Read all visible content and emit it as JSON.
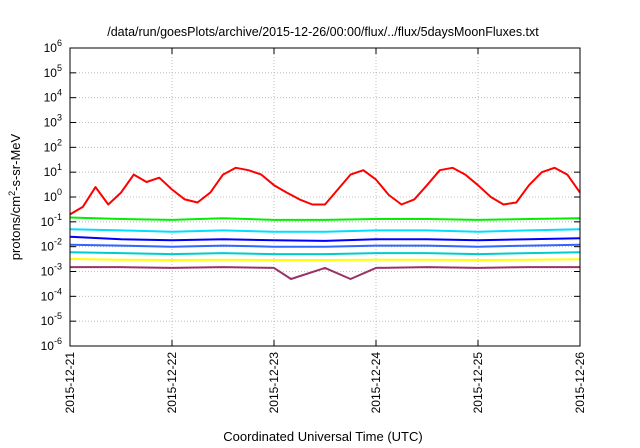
{
  "chart_data": {
    "type": "line",
    "title": "/data/run/goesPlots/archive/2015-12-26/00:00/flux/../flux/5daysMoonFluxes.txt",
    "xlabel": "Coordinated Universal Time (UTC)",
    "ylabel": {
      "pre": "protons/cm",
      "sup": "2",
      "post": "-s-sr-MeV"
    },
    "y_scale": "log",
    "ylim_exponents": [
      -6,
      6
    ],
    "y_ticks": [
      {
        "base": "10",
        "exp": "6"
      },
      {
        "base": "10",
        "exp": "5"
      },
      {
        "base": "10",
        "exp": "4"
      },
      {
        "base": "10",
        "exp": "3"
      },
      {
        "base": "10",
        "exp": "2"
      },
      {
        "base": "10",
        "exp": "1"
      },
      {
        "base": "10",
        "exp": "0"
      },
      {
        "base": "10",
        "exp": "-1"
      },
      {
        "base": "10",
        "exp": "-2"
      },
      {
        "base": "10",
        "exp": "-3"
      },
      {
        "base": "10",
        "exp": "-4"
      },
      {
        "base": "10",
        "exp": "-5"
      },
      {
        "base": "10",
        "exp": "-6"
      }
    ],
    "x_range": [
      "2015-12-21T00:00",
      "2015-12-26T00:00"
    ],
    "x_ticks": [
      "2015-12-21",
      "2015-12-22",
      "2015-12-23",
      "2015-12-24",
      "2015-12-25",
      "2015-12-26"
    ],
    "grid": true,
    "legend": "none",
    "series": [
      {
        "color": "#ff0000",
        "x": [
          "2015-12-21T00:00",
          "2015-12-21T03:00",
          "2015-12-21T06:00",
          "2015-12-21T09:00",
          "2015-12-21T12:00",
          "2015-12-21T15:00",
          "2015-12-21T18:00",
          "2015-12-21T21:00",
          "2015-12-22T00:00",
          "2015-12-22T03:00",
          "2015-12-22T06:00",
          "2015-12-22T09:00",
          "2015-12-22T12:00",
          "2015-12-22T15:00",
          "2015-12-22T18:00",
          "2015-12-22T21:00",
          "2015-12-23T00:00",
          "2015-12-23T03:00",
          "2015-12-23T06:00",
          "2015-12-23T09:00",
          "2015-12-23T12:00",
          "2015-12-23T15:00",
          "2015-12-23T18:00",
          "2015-12-23T21:00",
          "2015-12-24T00:00",
          "2015-12-24T03:00",
          "2015-12-24T06:00",
          "2015-12-24T09:00",
          "2015-12-24T12:00",
          "2015-12-24T15:00",
          "2015-12-24T18:00",
          "2015-12-24T21:00",
          "2015-12-25T00:00",
          "2015-12-25T03:00",
          "2015-12-25T06:00",
          "2015-12-25T09:00",
          "2015-12-25T12:00",
          "2015-12-25T15:00",
          "2015-12-25T18:00",
          "2015-12-25T21:00",
          "2015-12-26T00:00"
        ],
        "y": [
          0.2,
          0.4,
          2.5,
          0.5,
          1.5,
          8,
          4,
          6,
          2,
          0.8,
          0.6,
          1.5,
          8,
          15,
          12,
          8,
          3,
          1.5,
          0.8,
          0.5,
          0.5,
          2,
          8,
          12,
          5,
          1.2,
          0.5,
          0.8,
          3,
          12,
          15,
          8,
          3,
          1,
          0.5,
          0.6,
          3,
          10,
          15,
          8,
          1.5
        ]
      },
      {
        "color": "#00ee00",
        "x": [
          "2015-12-21T00:00",
          "2015-12-21T12:00",
          "2015-12-22T00:00",
          "2015-12-22T12:00",
          "2015-12-23T00:00",
          "2015-12-23T12:00",
          "2015-12-24T00:00",
          "2015-12-24T12:00",
          "2015-12-25T00:00",
          "2015-12-25T12:00",
          "2015-12-26T00:00"
        ],
        "y": [
          0.15,
          0.13,
          0.12,
          0.14,
          0.12,
          0.12,
          0.13,
          0.13,
          0.12,
          0.13,
          0.14
        ]
      },
      {
        "color": "#00ddff",
        "x": [
          "2015-12-21T00:00",
          "2015-12-21T12:00",
          "2015-12-22T00:00",
          "2015-12-22T12:00",
          "2015-12-23T00:00",
          "2015-12-23T12:00",
          "2015-12-24T00:00",
          "2015-12-24T12:00",
          "2015-12-25T00:00",
          "2015-12-25T12:00",
          "2015-12-26T00:00"
        ],
        "y": [
          0.05,
          0.045,
          0.04,
          0.045,
          0.04,
          0.04,
          0.045,
          0.045,
          0.04,
          0.045,
          0.05
        ]
      },
      {
        "color": "#0000ff",
        "x": [
          "2015-12-21T00:00",
          "2015-12-21T12:00",
          "2015-12-22T00:00",
          "2015-12-22T12:00",
          "2015-12-23T00:00",
          "2015-12-23T12:00",
          "2015-12-24T00:00",
          "2015-12-24T12:00",
          "2015-12-25T00:00",
          "2015-12-25T12:00",
          "2015-12-26T00:00"
        ],
        "y": [
          0.025,
          0.02,
          0.018,
          0.02,
          0.018,
          0.017,
          0.02,
          0.02,
          0.018,
          0.02,
          0.022
        ]
      },
      {
        "color": "#3366ff",
        "x": [
          "2015-12-21T00:00",
          "2015-12-21T12:00",
          "2015-12-22T00:00",
          "2015-12-22T12:00",
          "2015-12-23T00:00",
          "2015-12-23T12:00",
          "2015-12-24T00:00",
          "2015-12-24T12:00",
          "2015-12-25T00:00",
          "2015-12-25T12:00",
          "2015-12-26T00:00"
        ],
        "y": [
          0.012,
          0.011,
          0.01,
          0.011,
          0.01,
          0.01,
          0.011,
          0.011,
          0.01,
          0.011,
          0.012
        ]
      },
      {
        "color": "#00cccc",
        "x": [
          "2015-12-21T00:00",
          "2015-12-21T12:00",
          "2015-12-22T00:00",
          "2015-12-22T12:00",
          "2015-12-23T00:00",
          "2015-12-23T12:00",
          "2015-12-24T00:00",
          "2015-12-24T12:00",
          "2015-12-25T00:00",
          "2015-12-25T12:00",
          "2015-12-26T00:00"
        ],
        "y": [
          0.006,
          0.0055,
          0.005,
          0.0055,
          0.005,
          0.005,
          0.0055,
          0.0055,
          0.005,
          0.0055,
          0.006
        ]
      },
      {
        "color": "#ffff00",
        "x": [
          "2015-12-21T00:00",
          "2015-12-21T12:00",
          "2015-12-22T00:00",
          "2015-12-22T12:00",
          "2015-12-23T00:00",
          "2015-12-23T12:00",
          "2015-12-24T00:00",
          "2015-12-24T12:00",
          "2015-12-25T00:00",
          "2015-12-25T12:00",
          "2015-12-26T00:00"
        ],
        "y": [
          0.0032,
          0.003,
          0.0029,
          0.003,
          0.0029,
          0.0029,
          0.003,
          0.003,
          0.0029,
          0.003,
          0.0031
        ]
      },
      {
        "color": "#993366",
        "x": [
          "2015-12-21T00:00",
          "2015-12-21T12:00",
          "2015-12-22T00:00",
          "2015-12-22T12:00",
          "2015-12-23T00:00",
          "2015-12-23T04:00",
          "2015-12-23T12:00",
          "2015-12-23T18:00",
          "2015-12-24T00:00",
          "2015-12-24T12:00",
          "2015-12-25T00:00",
          "2015-12-25T12:00",
          "2015-12-26T00:00"
        ],
        "y": [
          0.0015,
          0.0015,
          0.0014,
          0.0015,
          0.0014,
          0.0005,
          0.0014,
          0.0005,
          0.0014,
          0.0015,
          0.0014,
          0.0015,
          0.0015
        ]
      }
    ]
  }
}
